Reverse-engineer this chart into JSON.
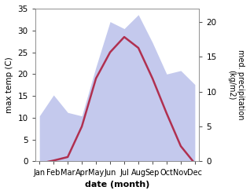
{
  "months": [
    "Jan",
    "Feb",
    "Mar",
    "Apr",
    "May",
    "Jun",
    "Jul",
    "Aug",
    "Sep",
    "Oct",
    "Nov",
    "Dec"
  ],
  "month_x": [
    0,
    1,
    2,
    3,
    4,
    5,
    6,
    7,
    8,
    9,
    10,
    11
  ],
  "temp": [
    -0.5,
    0.2,
    1.0,
    8.0,
    19.0,
    25.0,
    28.5,
    26.0,
    19.0,
    11.0,
    3.5,
    -0.5
  ],
  "precip": [
    6.5,
    9.5,
    7.0,
    6.5,
    13.5,
    20.0,
    19.0,
    21.0,
    17.0,
    12.5,
    13.0,
    11.0
  ],
  "temp_color": "#b03050",
  "precip_color": "#b0b8e8",
  "precip_alpha": 0.75,
  "temp_ylim": [
    0,
    35
  ],
  "precip_ylim": [
    0,
    21.875
  ],
  "temp_yticks": [
    0,
    5,
    10,
    15,
    20,
    25,
    30,
    35
  ],
  "precip_yticks": [
    0,
    5,
    10,
    15,
    20
  ],
  "xlabel": "date (month)",
  "ylabel_left": "max temp (C)",
  "ylabel_right": "med. precipitation\n(kg/m2)",
  "bg_color": "#ffffff",
  "scale_factor": 1.6
}
